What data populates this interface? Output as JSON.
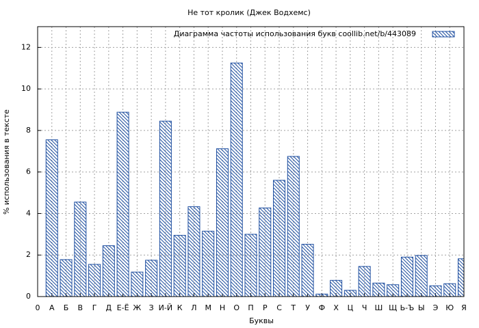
{
  "chart_data": {
    "type": "bar",
    "title": "Не тот кролик (Джек Водхемс)",
    "legend": "Диаграмма частоты использования букв  coollib.net/b/443089",
    "y_label": "% использования в тексте",
    "x_label": "Буквы",
    "color": "#1f4fa0",
    "x": [
      1,
      2,
      3,
      4,
      5,
      6,
      7,
      8,
      9,
      10,
      11,
      12,
      13,
      14,
      15,
      16,
      17,
      18,
      19,
      20,
      21,
      22,
      23,
      24,
      25,
      26,
      27,
      28,
      29,
      30
    ],
    "values": [
      7.55,
      1.78,
      4.55,
      1.55,
      2.45,
      8.88,
      1.18,
      1.75,
      8.45,
      2.95,
      4.33,
      3.15,
      7.12,
      11.25,
      3.0,
      4.27,
      5.6,
      6.75,
      2.52,
      0.12,
      0.78,
      0.3,
      1.45,
      0.65,
      0.57,
      1.9,
      1.98,
      0.52,
      0.62,
      1.82
    ],
    "xlim": [
      0,
      30
    ],
    "xticks": [
      0,
      {
        "value": 1,
        "label": "А"
      },
      {
        "value": 2,
        "label": "Б"
      },
      {
        "value": 3,
        "label": "В"
      },
      {
        "value": 4,
        "label": "Г"
      },
      {
        "value": 5,
        "label": "Д"
      },
      {
        "value": 6,
        "label": "Е-Ё"
      },
      {
        "value": 7,
        "label": "Ж"
      },
      {
        "value": 8,
        "label": "З"
      },
      {
        "value": 9,
        "label": "И-Й"
      },
      {
        "value": 10,
        "label": "К"
      },
      {
        "value": 11,
        "label": "Л"
      },
      {
        "value": 12,
        "label": "М"
      },
      {
        "value": 13,
        "label": "Н"
      },
      {
        "value": 14,
        "label": "О"
      },
      {
        "value": 15,
        "label": "П"
      },
      {
        "value": 16,
        "label": "Р"
      },
      {
        "value": 17,
        "label": "С"
      },
      {
        "value": 18,
        "label": "Т"
      },
      {
        "value": 19,
        "label": "У"
      },
      {
        "value": 20,
        "label": "Ф"
      },
      {
        "value": 21,
        "label": "Х"
      },
      {
        "value": 22,
        "label": "Ц"
      },
      {
        "value": 23,
        "label": "Ч"
      },
      {
        "value": 24,
        "label": "Ш"
      },
      {
        "value": 25,
        "label": "Щ"
      },
      {
        "value": 26,
        "label": "Ь-Ъ"
      },
      {
        "value": 27,
        "label": "Ы"
      },
      {
        "value": 28,
        "label": "Э"
      },
      {
        "value": 29,
        "label": "Ю"
      },
      {
        "value": 30,
        "label": "Я"
      }
    ],
    "ylim": [
      0,
      13
    ],
    "yticks": [
      0,
      2,
      4,
      6,
      8,
      10,
      12
    ],
    "grid": true
  }
}
